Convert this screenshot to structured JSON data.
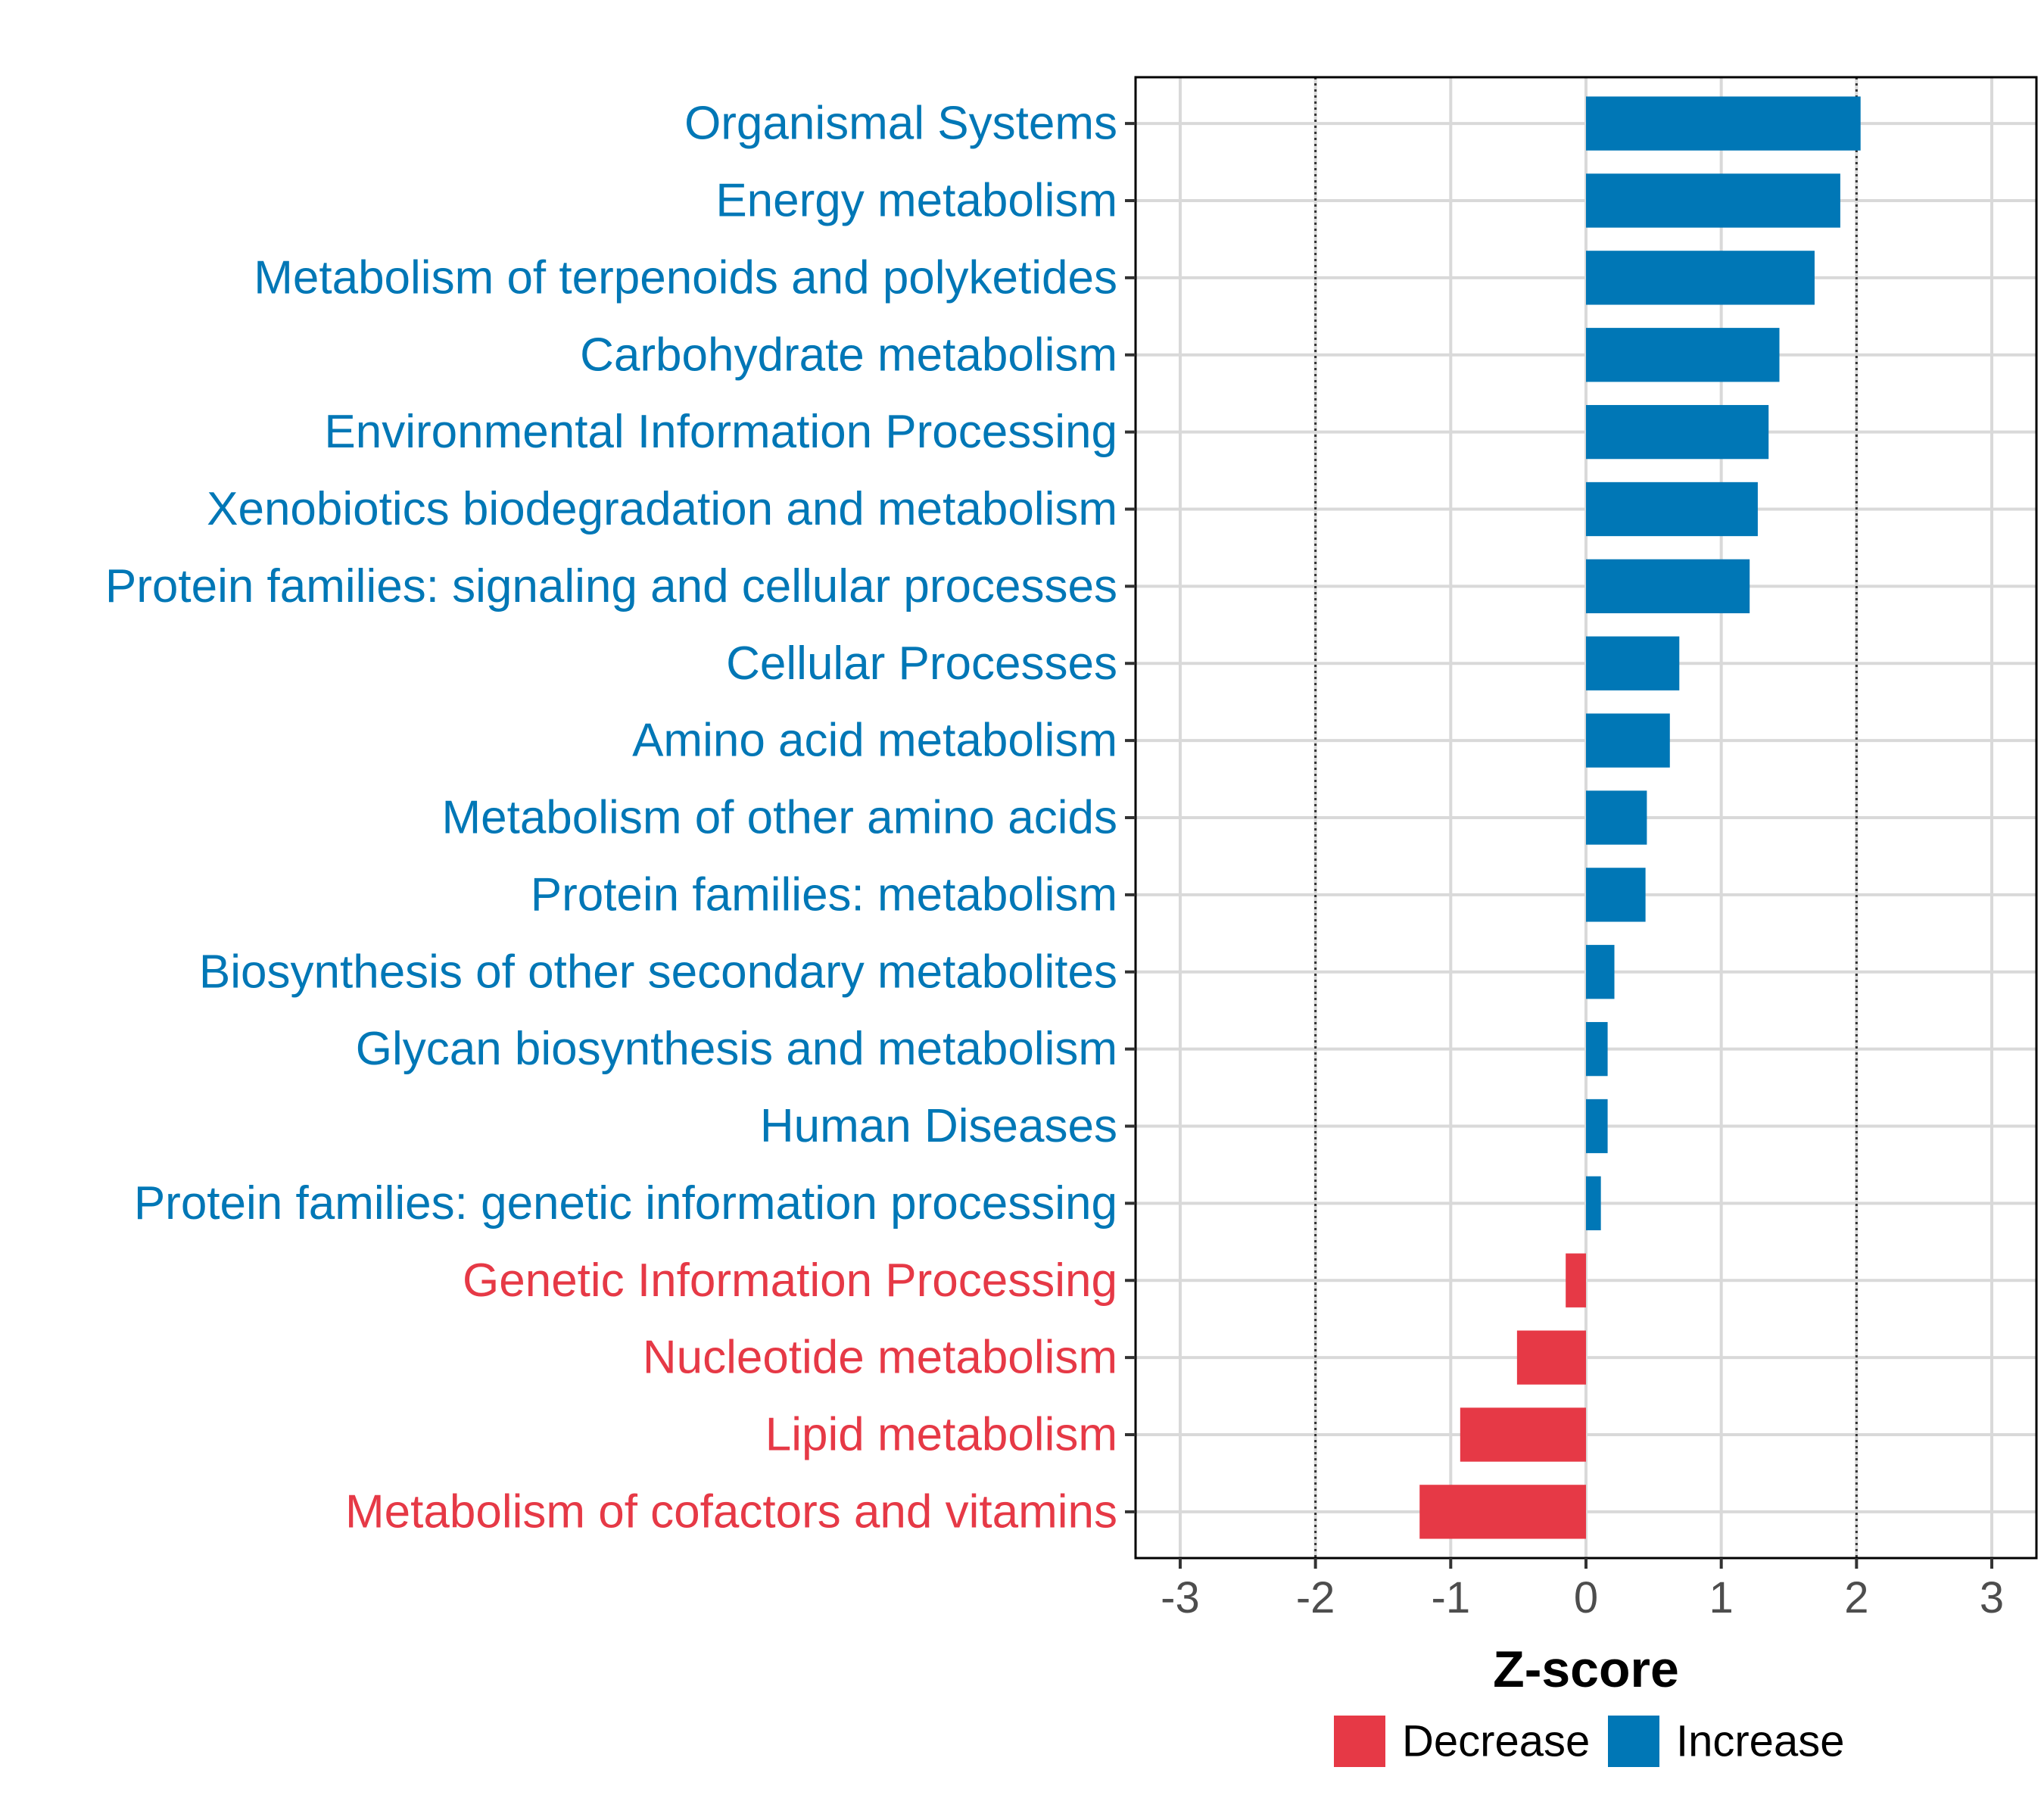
{
  "chart_data": {
    "type": "bar",
    "orientation": "horizontal",
    "title": "",
    "xlabel": "Z-score",
    "ylabel": "",
    "xlim": [
      -3.33,
      3.33
    ],
    "x_ticks": [
      -3,
      -2,
      -1,
      0,
      1,
      2,
      3
    ],
    "x_tick_labels": [
      "-3",
      "-2",
      "-1",
      "0",
      "1",
      "2",
      "3"
    ],
    "reference_lines": [
      -2,
      2
    ],
    "grid": true,
    "legend_position": "bottom",
    "colors": {
      "Decrease": "#E63946",
      "Increase": "#0077B6"
    },
    "legend": [
      {
        "name": "Decrease"
      },
      {
        "name": "Increase"
      }
    ],
    "categories": [
      "Organismal Systems",
      "Energy metabolism",
      "Metabolism of terpenoids and polyketides",
      "Carbohydrate metabolism",
      "Environmental Information Processing",
      "Xenobiotics biodegradation and metabolism",
      "Protein families: signaling and cellular processes",
      "Cellular Processes",
      "Amino acid metabolism",
      "Metabolism of other amino acids",
      "Protein families: metabolism",
      "Biosynthesis of other secondary metabolites",
      "Glycan biosynthesis and metabolism",
      "Human Diseases",
      "Protein families: genetic information processing",
      "Genetic Information Processing",
      "Nucleotide metabolism",
      "Lipid metabolism",
      "Metabolism of cofactors and vitamins"
    ],
    "values": [
      2.03,
      1.88,
      1.69,
      1.43,
      1.35,
      1.27,
      1.21,
      0.69,
      0.62,
      0.45,
      0.44,
      0.21,
      0.16,
      0.16,
      0.11,
      -0.15,
      -0.51,
      -0.93,
      -1.23
    ],
    "groups": [
      "Increase",
      "Increase",
      "Increase",
      "Increase",
      "Increase",
      "Increase",
      "Increase",
      "Increase",
      "Increase",
      "Increase",
      "Increase",
      "Increase",
      "Increase",
      "Increase",
      "Increase",
      "Decrease",
      "Decrease",
      "Decrease",
      "Decrease"
    ]
  }
}
